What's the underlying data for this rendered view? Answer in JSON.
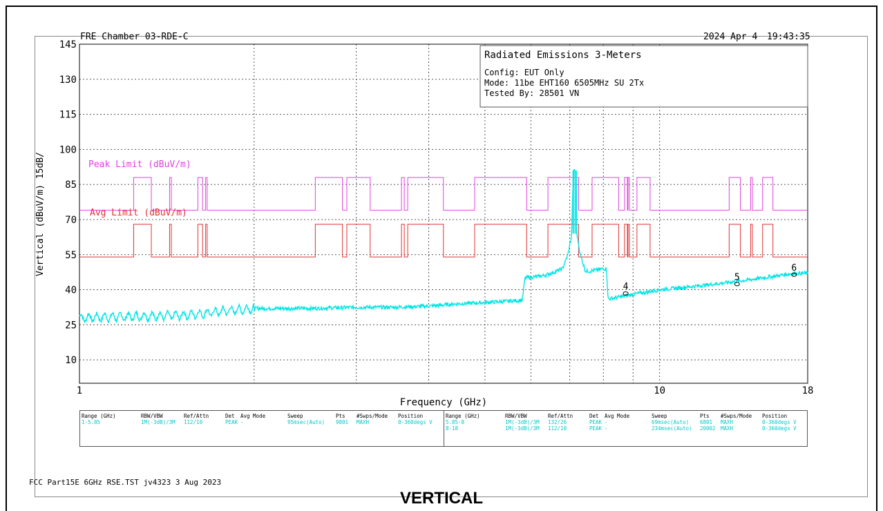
{
  "header": {
    "left": "FRE Chamber 03-RDE-C",
    "date": "2024 Apr 4",
    "time": "19:43:35"
  },
  "info_box": {
    "title": "Radiated Emissions 3-Meters",
    "lines": [
      "Config: EUT Only",
      "Mode: 11be EHT160 6505MHz SU 2Tx",
      "Tested By: 28501 VN"
    ]
  },
  "footer_text": "FCC Part15E 6GHz RSE.TST jv4323  3 Aug 2023",
  "bottom_title": "VERTICAL",
  "colors": {
    "trace": "#00e5e5",
    "peak_limit": "#e040e0",
    "avg_limit": "#e03030",
    "grid": "#555555"
  },
  "settings": {
    "headers": [
      "Range (GHz)",
      "RBW/VBW",
      "Ref/Attn",
      "Det",
      "Avg Mode",
      "Sweep",
      "Pts",
      "#Swps/Mode",
      "Position"
    ],
    "left_rows": [
      [
        "1-5.85",
        "1M(-3dB)/3M",
        "112/10",
        "PEAK",
        "-",
        "95msec(Auto)",
        "9801",
        "MAXH",
        "0-360degs V"
      ]
    ],
    "right_rows": [
      [
        "5.85-8",
        "1M(-3dB)/3M",
        "132/26",
        "PEAK",
        "-",
        "69msec(Auto)",
        "6801",
        "MAXH",
        "0-360degs V"
      ],
      [
        "8-18",
        "1M(-3dB)/3M",
        "112/10",
        "PEAK",
        "-",
        "234msec(Auto)",
        "20002",
        "MAXH",
        "0-360degs V"
      ]
    ]
  },
  "chart_data": {
    "type": "line",
    "xlabel": "Frequency (GHz)",
    "ylabel": "Vertical (dBuV/m) 15dB/",
    "x_scale": "log",
    "xlim": [
      1,
      18
    ],
    "ylim": [
      0,
      145
    ],
    "x_tick_labels": [
      {
        "x": 1,
        "label": "1"
      },
      {
        "x": 10,
        "label": "10"
      },
      {
        "x": 18,
        "label": "18"
      }
    ],
    "y_ticks": [
      10,
      25,
      40,
      55,
      70,
      85,
      100,
      115,
      130,
      145
    ],
    "grid": true,
    "series": [
      {
        "name": "Peak Limit (dBuV/m)",
        "base": 74,
        "raised": 88,
        "raised_bands_ghz": [
          [
            1.24,
            1.33
          ],
          [
            1.43,
            1.44
          ],
          [
            1.6,
            1.63
          ],
          [
            1.65,
            1.66
          ],
          [
            2.55,
            2.84
          ],
          [
            2.89,
            3.17
          ],
          [
            3.59,
            3.63
          ],
          [
            3.68,
            4.24
          ],
          [
            4.8,
            5.9
          ],
          [
            6.42,
            7.25
          ],
          [
            7.65,
            8.5
          ],
          [
            8.7,
            8.8
          ],
          [
            8.82,
            8.87
          ],
          [
            9.14,
            9.63
          ],
          [
            13.18,
            13.78
          ],
          [
            14.35,
            14.45
          ],
          [
            15.05,
            15.68
          ]
        ]
      },
      {
        "name": "Avg Limit (dBuV/m)",
        "base": 54,
        "raised": 68,
        "raised_bands_ghz": [
          [
            1.24,
            1.33
          ],
          [
            1.43,
            1.44
          ],
          [
            1.6,
            1.63
          ],
          [
            1.65,
            1.66
          ],
          [
            2.55,
            2.84
          ],
          [
            2.89,
            3.17
          ],
          [
            3.59,
            3.63
          ],
          [
            3.68,
            4.24
          ],
          [
            4.8,
            5.9
          ],
          [
            6.42,
            7.25
          ],
          [
            7.65,
            8.5
          ],
          [
            8.7,
            8.8
          ],
          [
            8.82,
            8.87
          ],
          [
            9.14,
            9.63
          ],
          [
            13.18,
            13.78
          ],
          [
            14.35,
            14.45
          ],
          [
            15.05,
            15.68
          ]
        ]
      },
      {
        "name": "",
        "points": [
          [
            1.0,
            28
          ],
          [
            1.2,
            28.5
          ],
          [
            1.5,
            29
          ],
          [
            1.8,
            31
          ],
          [
            2.0,
            32
          ],
          [
            2.5,
            32
          ],
          [
            3.0,
            32.5
          ],
          [
            3.5,
            32.5
          ],
          [
            4.0,
            33
          ],
          [
            4.5,
            34
          ],
          [
            5.0,
            34.5
          ],
          [
            5.8,
            35.5
          ],
          [
            5.86,
            45
          ],
          [
            6.3,
            46
          ],
          [
            6.5,
            47
          ],
          [
            6.8,
            49
          ],
          [
            6.95,
            55
          ],
          [
            7.05,
            63
          ],
          [
            7.1,
            90
          ],
          [
            7.15,
            92
          ],
          [
            7.2,
            64
          ],
          [
            7.3,
            55
          ],
          [
            7.45,
            48
          ],
          [
            7.6,
            48
          ],
          [
            8.0,
            49
          ],
          [
            8.1,
            49
          ],
          [
            8.15,
            36
          ],
          [
            9.0,
            38
          ],
          [
            10.0,
            40
          ],
          [
            11.0,
            41
          ],
          [
            12.0,
            42
          ],
          [
            13.0,
            43
          ],
          [
            14.0,
            44
          ],
          [
            15.0,
            45
          ],
          [
            16.0,
            46
          ],
          [
            17.0,
            47
          ],
          [
            18.0,
            47
          ]
        ]
      }
    ],
    "markers": [
      {
        "label": "4",
        "x": 8.74,
        "y": 39
      },
      {
        "label": "5",
        "x": 13.6,
        "y": 43
      },
      {
        "label": "6",
        "x": 17.05,
        "y": 47
      }
    ]
  }
}
